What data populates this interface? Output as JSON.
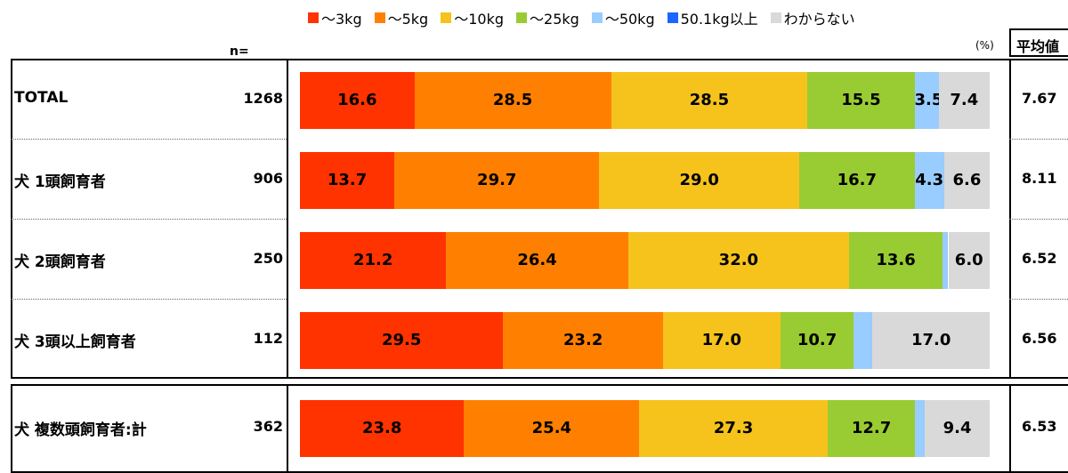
{
  "chart_data": {
    "type": "bar",
    "orientation": "horizontal-stacked-100",
    "unit_label": "(%)",
    "n_header": "n=",
    "avg_header": "平均値",
    "legend": [
      {
        "name": "～3kg",
        "color": "#ff3300"
      },
      {
        "name": "～5kg",
        "color": "#ff8000"
      },
      {
        "name": "～10kg",
        "color": "#f5c31c"
      },
      {
        "name": "～25kg",
        "color": "#99cc33"
      },
      {
        "name": "～50kg",
        "color": "#99ccff"
      },
      {
        "name": "50.1kg以上",
        "color": "#1a66ff"
      },
      {
        "name": "わからない",
        "color": "#d9d9d9"
      }
    ],
    "rows": [
      {
        "label": "TOTAL",
        "n": "1268",
        "avg": "7.67",
        "values": [
          16.6,
          28.5,
          28.5,
          15.5,
          3.5,
          0.0,
          7.4
        ],
        "labels": [
          "16.6",
          "28.5",
          "28.5",
          "15.5",
          "3.5",
          "",
          "7.4"
        ]
      },
      {
        "label": "犬 1頭飼育者",
        "n": "906",
        "avg": "8.11",
        "values": [
          13.7,
          29.7,
          29.0,
          16.7,
          4.3,
          0.0,
          6.6
        ],
        "labels": [
          "13.7",
          "29.7",
          "29.0",
          "16.7",
          "4.3",
          "",
          "6.6"
        ]
      },
      {
        "label": "犬 2頭飼育者",
        "n": "250",
        "avg": "6.52",
        "values": [
          21.2,
          26.4,
          32.0,
          13.6,
          0.8,
          0.0,
          6.0
        ],
        "labels": [
          "21.2",
          "26.4",
          "32.0",
          "13.6",
          "",
          "",
          "6.0"
        ]
      },
      {
        "label": "犬 3頭以上飼育者",
        "n": "112",
        "avg": "6.56",
        "values": [
          29.5,
          23.2,
          17.0,
          10.7,
          2.7,
          0.0,
          17.0
        ],
        "labels": [
          "29.5",
          "23.2",
          "17.0",
          "10.7",
          "",
          "",
          "17.0"
        ]
      },
      {
        "label": "犬 複数頭飼育者:計",
        "n": "362",
        "avg": "6.53",
        "values": [
          23.8,
          25.4,
          27.3,
          12.7,
          1.4,
          0.0,
          9.4
        ],
        "labels": [
          "23.8",
          "25.4",
          "27.3",
          "12.7",
          "",
          "",
          "9.4"
        ]
      }
    ]
  }
}
